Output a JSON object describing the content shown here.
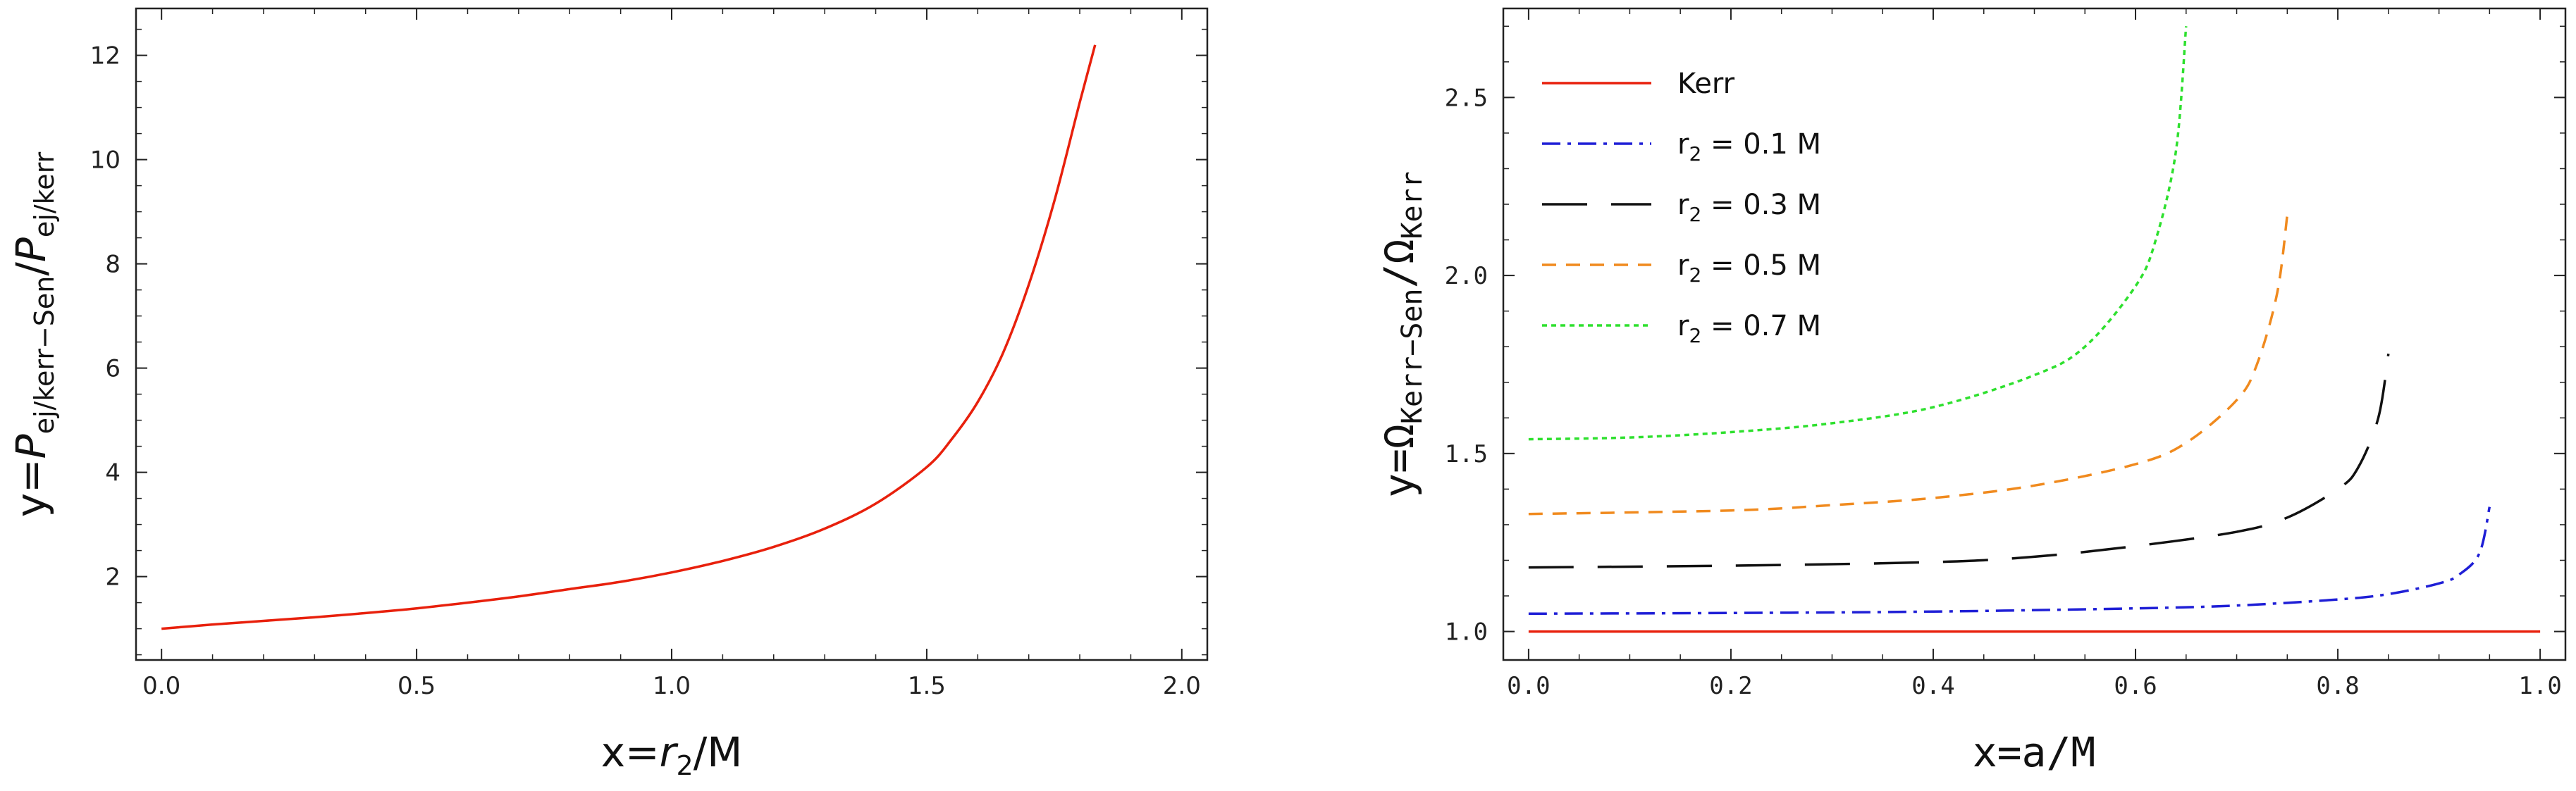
{
  "chart_data": [
    {
      "type": "line",
      "xlabel": {
        "prefix": "x=",
        "var": "r",
        "sub": "2",
        "suffix": "/M"
      },
      "ylabel": {
        "prefix": "y=",
        "num": "P",
        "num_sub": "ej/kerr−Sen",
        "slash": "/",
        "den": "P",
        "den_sub": "ej/kerr"
      },
      "xlim": [
        -0.05,
        2.05
      ],
      "ylim": [
        0.4,
        12.9
      ],
      "xticks": [
        "0.0",
        "0.5",
        "1.0",
        "1.5",
        "2.0"
      ],
      "xtick_values": [
        0,
        0.5,
        1.0,
        1.5,
        2.0
      ],
      "yticks": [
        "2",
        "4",
        "6",
        "8",
        "10",
        "12"
      ],
      "ytick_values": [
        2,
        4,
        6,
        8,
        10,
        12
      ],
      "grid": false,
      "series": [
        {
          "color": "#e8200c",
          "dash": "solid",
          "x": [
            0.0,
            0.1,
            0.2,
            0.3,
            0.4,
            0.5,
            0.6,
            0.7,
            0.8,
            0.9,
            1.0,
            1.1,
            1.2,
            1.3,
            1.4,
            1.5,
            1.55,
            1.6,
            1.65,
            1.7,
            1.75,
            1.8,
            1.83
          ],
          "y": [
            1.0,
            1.08,
            1.15,
            1.22,
            1.3,
            1.39,
            1.5,
            1.62,
            1.76,
            1.9,
            2.08,
            2.3,
            2.57,
            2.92,
            3.4,
            4.1,
            4.65,
            5.35,
            6.3,
            7.6,
            9.2,
            11.1,
            12.2
          ]
        }
      ]
    },
    {
      "type": "line",
      "xlabel": "x=a/M",
      "ylabel": {
        "prefix": "y=",
        "num": "Ω",
        "num_sub": "Kerr−Sen",
        "slash": "/",
        "den": "Ω",
        "den_sub": "Kerr"
      },
      "xlim": [
        -0.025,
        1.025
      ],
      "ylim": [
        0.92,
        2.75
      ],
      "xticks": [
        "0.0",
        "0.2",
        "0.4",
        "0.6",
        "0.8",
        "1.0"
      ],
      "xtick_values": [
        0,
        0.2,
        0.4,
        0.6,
        0.8,
        1.0
      ],
      "yticks": [
        "1.0",
        "1.5",
        "2.0",
        "2.5"
      ],
      "ytick_values": [
        1.0,
        1.5,
        2.0,
        2.5
      ],
      "grid": false,
      "legend_position": "top-left",
      "series": [
        {
          "name": "Kerr",
          "color": "#e8200c",
          "dash": "solid",
          "x": [
            0.0,
            1.0
          ],
          "y": [
            1.0,
            1.0
          ]
        },
        {
          "name_prefix": "r",
          "name_sub": "2",
          "name_suffix": " = 0.1 M",
          "color": "#1f1fd6",
          "dash": "dashdot",
          "x": [
            0.0,
            0.2,
            0.4,
            0.6,
            0.7,
            0.8,
            0.85,
            0.9,
            0.92,
            0.94,
            0.95
          ],
          "y": [
            1.05,
            1.052,
            1.056,
            1.065,
            1.073,
            1.09,
            1.105,
            1.135,
            1.16,
            1.22,
            1.35
          ]
        },
        {
          "name_prefix": "r",
          "name_sub": "2",
          "name_suffix": " = 0.3 M",
          "color": "#111111",
          "dash": "longdash",
          "x": [
            0.0,
            0.2,
            0.4,
            0.5,
            0.6,
            0.7,
            0.75,
            0.8,
            0.82,
            0.84,
            0.85
          ],
          "y": [
            1.18,
            1.185,
            1.195,
            1.21,
            1.24,
            1.28,
            1.32,
            1.4,
            1.46,
            1.6,
            1.78
          ]
        },
        {
          "name_prefix": "r",
          "name_sub": "2",
          "name_suffix": " = 0.5 M",
          "color": "#f08a1e",
          "dash": "dashed",
          "x": [
            0.0,
            0.2,
            0.3,
            0.4,
            0.5,
            0.6,
            0.65,
            0.7,
            0.72,
            0.74,
            0.75
          ],
          "y": [
            1.33,
            1.34,
            1.355,
            1.375,
            1.41,
            1.47,
            1.53,
            1.65,
            1.75,
            1.95,
            2.17
          ]
        },
        {
          "name_prefix": "r",
          "name_sub": "2",
          "name_suffix": " = 0.7 M",
          "color": "#2ee02e",
          "dash": "dotted",
          "x": [
            0.0,
            0.1,
            0.2,
            0.3,
            0.4,
            0.5,
            0.55,
            0.6,
            0.62,
            0.64,
            0.65
          ],
          "y": [
            1.54,
            1.545,
            1.56,
            1.585,
            1.63,
            1.72,
            1.8,
            1.97,
            2.1,
            2.35,
            2.7
          ]
        }
      ]
    }
  ]
}
